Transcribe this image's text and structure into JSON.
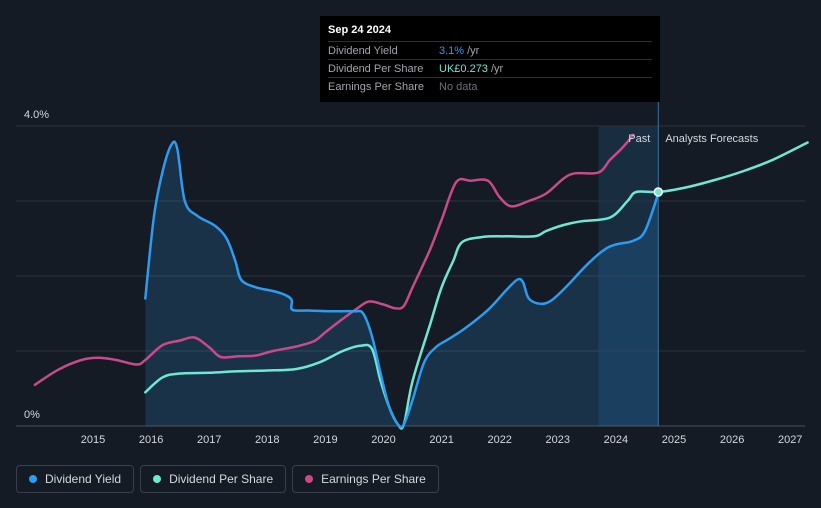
{
  "tooltip": {
    "date": "Sep 24 2024",
    "rows": [
      {
        "label": "Dividend Yield",
        "value": "3.1%",
        "unit": "/yr"
      },
      {
        "label": "Dividend Per Share",
        "value": "UK£0.273",
        "unit": "/yr"
      },
      {
        "label": "Earnings Per Share",
        "value": "No data",
        "unit": ""
      }
    ]
  },
  "colors": {
    "dividend_yield": "#2d9bf0",
    "dividend_per_share": "#6ee7d3",
    "earnings_per_share": "#c94a8a",
    "background": "#151b24"
  },
  "legend": [
    {
      "label": "Dividend Yield",
      "color": "#2d9bf0"
    },
    {
      "label": "Dividend Per Share",
      "color": "#6ee7d3"
    },
    {
      "label": "Earnings Per Share",
      "color": "#c94a8a"
    }
  ],
  "chart_data": {
    "type": "line",
    "y_tick_labels": [
      "4.0%",
      "0%"
    ],
    "ylim": [
      0,
      4.0
    ],
    "xlim": [
      2014.0,
      2027.3
    ],
    "x_ticks": [
      "2015",
      "2016",
      "2017",
      "2018",
      "2019",
      "2020",
      "2021",
      "2022",
      "2023",
      "2024",
      "2025",
      "2026",
      "2027"
    ],
    "past_label": "Past",
    "forecast_label": "Analysts Forecasts",
    "forecast_start": 2023.7,
    "today": 2024.73,
    "grid": true,
    "legend_position": "bottom-left",
    "series": [
      {
        "name": "Dividend Yield",
        "points": [
          [
            2015.9,
            1.7
          ],
          [
            2016.05,
            2.8
          ],
          [
            2016.2,
            3.4
          ],
          [
            2016.35,
            3.75
          ],
          [
            2016.45,
            3.7
          ],
          [
            2016.58,
            3.0
          ],
          [
            2016.8,
            2.8
          ],
          [
            2017.1,
            2.67
          ],
          [
            2017.3,
            2.5
          ],
          [
            2017.45,
            2.2
          ],
          [
            2017.55,
            1.95
          ],
          [
            2017.8,
            1.85
          ],
          [
            2018.1,
            1.8
          ],
          [
            2018.3,
            1.75
          ],
          [
            2018.42,
            1.68
          ],
          [
            2018.43,
            1.55
          ],
          [
            2018.7,
            1.54
          ],
          [
            2019.1,
            1.53
          ],
          [
            2019.5,
            1.53
          ],
          [
            2019.65,
            1.5
          ],
          [
            2019.8,
            1.2
          ],
          [
            2019.95,
            0.7
          ],
          [
            2020.1,
            0.25
          ],
          [
            2020.25,
            0.02
          ],
          [
            2020.35,
            0.02
          ],
          [
            2020.5,
            0.35
          ],
          [
            2020.7,
            0.85
          ],
          [
            2020.9,
            1.05
          ],
          [
            2021.1,
            1.15
          ],
          [
            2021.4,
            1.3
          ],
          [
            2021.8,
            1.55
          ],
          [
            2022.1,
            1.8
          ],
          [
            2022.3,
            1.95
          ],
          [
            2022.4,
            1.92
          ],
          [
            2022.5,
            1.7
          ],
          [
            2022.7,
            1.63
          ],
          [
            2022.9,
            1.68
          ],
          [
            2023.2,
            1.9
          ],
          [
            2023.5,
            2.15
          ],
          [
            2023.8,
            2.35
          ],
          [
            2024.0,
            2.42
          ],
          [
            2024.3,
            2.47
          ],
          [
            2024.5,
            2.6
          ],
          [
            2024.73,
            3.1
          ]
        ]
      },
      {
        "name": "Dividend Per Share",
        "points": [
          [
            2015.9,
            0.45
          ],
          [
            2016.2,
            0.65
          ],
          [
            2016.5,
            0.7
          ],
          [
            2017.0,
            0.71
          ],
          [
            2017.5,
            0.73
          ],
          [
            2018.0,
            0.74
          ],
          [
            2018.5,
            0.76
          ],
          [
            2018.9,
            0.85
          ],
          [
            2019.3,
            1.0
          ],
          [
            2019.6,
            1.07
          ],
          [
            2019.8,
            1.03
          ],
          [
            2019.95,
            0.6
          ],
          [
            2020.1,
            0.25
          ],
          [
            2020.25,
            0.02
          ],
          [
            2020.35,
            0.02
          ],
          [
            2020.5,
            0.6
          ],
          [
            2020.8,
            1.35
          ],
          [
            2021.0,
            1.85
          ],
          [
            2021.2,
            2.2
          ],
          [
            2021.35,
            2.45
          ],
          [
            2021.7,
            2.52
          ],
          [
            2022.1,
            2.53
          ],
          [
            2022.6,
            2.53
          ],
          [
            2022.8,
            2.6
          ],
          [
            2023.1,
            2.68
          ],
          [
            2023.4,
            2.73
          ],
          [
            2023.9,
            2.78
          ],
          [
            2024.2,
            3.0
          ],
          [
            2024.35,
            3.12
          ],
          [
            2024.73,
            3.12
          ],
          [
            2025.2,
            3.18
          ],
          [
            2025.7,
            3.28
          ],
          [
            2026.2,
            3.4
          ],
          [
            2026.7,
            3.55
          ],
          [
            2027.3,
            3.78
          ]
        ]
      },
      {
        "name": "Earnings Per Share",
        "points": [
          [
            2014.0,
            0.55
          ],
          [
            2014.4,
            0.75
          ],
          [
            2014.8,
            0.88
          ],
          [
            2015.1,
            0.91
          ],
          [
            2015.4,
            0.88
          ],
          [
            2015.75,
            0.82
          ],
          [
            2015.9,
            0.88
          ],
          [
            2016.2,
            1.08
          ],
          [
            2016.5,
            1.14
          ],
          [
            2016.75,
            1.18
          ],
          [
            2017.0,
            1.05
          ],
          [
            2017.2,
            0.92
          ],
          [
            2017.5,
            0.93
          ],
          [
            2017.8,
            0.94
          ],
          [
            2018.1,
            1.0
          ],
          [
            2018.5,
            1.06
          ],
          [
            2018.8,
            1.13
          ],
          [
            2019.0,
            1.25
          ],
          [
            2019.3,
            1.43
          ],
          [
            2019.55,
            1.57
          ],
          [
            2019.75,
            1.66
          ],
          [
            2020.0,
            1.62
          ],
          [
            2020.2,
            1.57
          ],
          [
            2020.35,
            1.6
          ],
          [
            2020.5,
            1.85
          ],
          [
            2020.8,
            2.35
          ],
          [
            2021.0,
            2.75
          ],
          [
            2021.25,
            3.25
          ],
          [
            2021.5,
            3.27
          ],
          [
            2021.8,
            3.27
          ],
          [
            2022.0,
            3.05
          ],
          [
            2022.2,
            2.93
          ],
          [
            2022.5,
            3.0
          ],
          [
            2022.8,
            3.1
          ],
          [
            2023.1,
            3.3
          ],
          [
            2023.3,
            3.37
          ],
          [
            2023.7,
            3.38
          ],
          [
            2023.9,
            3.55
          ],
          [
            2024.1,
            3.7
          ],
          [
            2024.3,
            3.88
          ]
        ]
      }
    ]
  }
}
